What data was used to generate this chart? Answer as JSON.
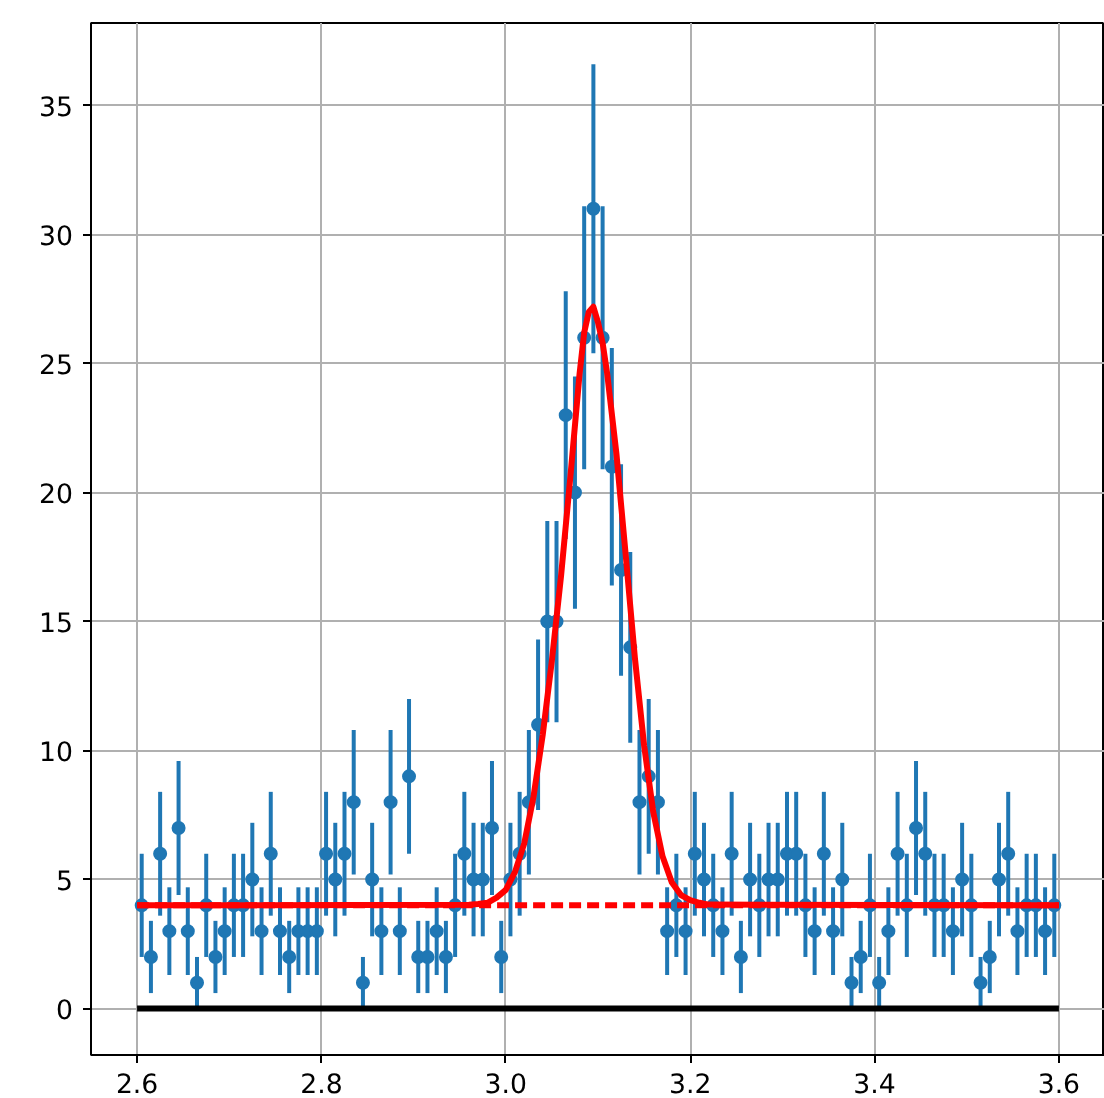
{
  "chart_data": {
    "type": "scatter",
    "xlim": [
      2.55,
      3.65
    ],
    "ylim": [
      -1.8,
      38.2
    ],
    "xticks": [
      {
        "value": 2.6,
        "label": "2.6"
      },
      {
        "value": 2.8,
        "label": "2.8"
      },
      {
        "value": 3.0,
        "label": "3.0"
      },
      {
        "value": 3.2,
        "label": "3.2"
      },
      {
        "value": 3.4,
        "label": "3.4"
      },
      {
        "value": 3.6,
        "label": "3.6"
      }
    ],
    "yticks": [
      0,
      5,
      10,
      15,
      20,
      25,
      30,
      35
    ],
    "grid": true,
    "series": [
      {
        "color": "#1f77b4",
        "marker": "circle",
        "x": [
          2.605,
          2.615,
          2.625,
          2.635,
          2.645,
          2.655,
          2.665,
          2.675,
          2.685,
          2.695,
          2.705,
          2.715,
          2.725,
          2.735,
          2.745,
          2.755,
          2.765,
          2.775,
          2.785,
          2.795,
          2.805,
          2.815,
          2.825,
          2.835,
          2.845,
          2.855,
          2.865,
          2.875,
          2.885,
          2.895,
          2.905,
          2.915,
          2.925,
          2.935,
          2.945,
          2.955,
          2.965,
          2.975,
          2.985,
          2.995,
          3.005,
          3.015,
          3.025,
          3.035,
          3.045,
          3.055,
          3.065,
          3.075,
          3.085,
          3.095,
          3.105,
          3.115,
          3.125,
          3.135,
          3.145,
          3.155,
          3.165,
          3.175,
          3.185,
          3.195,
          3.205,
          3.215,
          3.225,
          3.235,
          3.245,
          3.255,
          3.265,
          3.275,
          3.285,
          3.295,
          3.305,
          3.315,
          3.325,
          3.335,
          3.345,
          3.355,
          3.365,
          3.375,
          3.385,
          3.395,
          3.405,
          3.415,
          3.425,
          3.435,
          3.445,
          3.455,
          3.465,
          3.475,
          3.485,
          3.495,
          3.505,
          3.515,
          3.525,
          3.535,
          3.545,
          3.555,
          3.565,
          3.575,
          3.585,
          3.595
        ],
        "values": [
          4,
          2,
          6,
          3,
          7,
          3,
          1,
          4,
          2,
          3,
          4,
          4,
          5,
          3,
          6,
          3,
          2,
          3,
          3,
          3,
          6,
          5,
          6,
          8,
          1,
          5,
          3,
          8,
          3,
          9,
          2,
          2,
          3,
          2,
          4,
          6,
          5,
          5,
          7,
          2,
          5,
          6,
          8,
          11,
          15,
          15,
          23,
          20,
          26,
          31,
          26,
          21,
          17,
          14,
          8,
          9,
          8,
          3,
          4,
          3,
          6,
          5,
          4,
          3,
          6,
          2,
          5,
          4,
          5,
          5,
          6,
          6,
          4,
          3,
          6,
          3,
          5,
          1,
          2,
          4,
          1,
          3,
          6,
          4,
          7,
          6,
          4,
          4,
          3,
          5,
          4,
          1,
          2,
          5,
          6,
          3,
          4,
          4,
          3,
          4
        ],
        "errors": [
          2,
          1.4,
          2.4,
          1.7,
          2.6,
          1.7,
          1,
          2,
          1.4,
          1.7,
          2,
          2,
          2.2,
          1.7,
          2.4,
          1.7,
          1.4,
          1.7,
          1.7,
          1.7,
          2.4,
          2.2,
          2.4,
          2.8,
          1,
          2.2,
          1.7,
          2.8,
          1.7,
          3,
          1.4,
          1.4,
          1.7,
          1.4,
          2,
          2.4,
          2.2,
          2.2,
          2.6,
          1.4,
          2.2,
          2.4,
          2.8,
          3.3,
          3.9,
          3.9,
          4.8,
          4.5,
          5.1,
          5.6,
          5.1,
          4.6,
          4.1,
          3.7,
          2.8,
          3,
          2.8,
          1.7,
          2,
          1.7,
          2.4,
          2.2,
          2,
          1.7,
          2.4,
          1.4,
          2.2,
          2,
          2.2,
          2.2,
          2.4,
          2.4,
          2,
          1.7,
          2.4,
          1.7,
          2.2,
          1,
          1.4,
          2,
          1,
          1.7,
          2.4,
          2,
          2.6,
          2.4,
          2,
          2,
          1.7,
          2.2,
          2,
          1,
          1.4,
          2.2,
          2.4,
          1.7,
          2,
          2,
          1.7,
          2
        ]
      },
      {
        "type": "line",
        "color": "#000000",
        "line_style": "solid",
        "x": [
          2.6,
          3.6
        ],
        "values": [
          0,
          0
        ]
      },
      {
        "type": "line",
        "color": "#ff0000",
        "line_style": "dashed",
        "x": [
          2.6,
          3.6
        ],
        "values": [
          4,
          4
        ]
      },
      {
        "type": "line",
        "color": "#ff0000",
        "line_style": "solid",
        "x": [
          2.6,
          2.96,
          2.97,
          2.98,
          2.99,
          3.0,
          3.01,
          3.02,
          3.03,
          3.04,
          3.05,
          3.06,
          3.07,
          3.08,
          3.085,
          3.09,
          3.095,
          3.1,
          3.105,
          3.11,
          3.12,
          3.13,
          3.14,
          3.15,
          3.16,
          3.17,
          3.18,
          3.19,
          3.2,
          3.21,
          3.22,
          3.6
        ],
        "values": [
          4,
          4.02,
          4.05,
          4.1,
          4.3,
          4.6,
          5.3,
          6.4,
          8.2,
          10.6,
          13.5,
          16.8,
          20.6,
          24.6,
          26.2,
          27.0,
          27.2,
          26.6,
          25.8,
          24.6,
          21.5,
          17.6,
          13.6,
          10.2,
          7.6,
          5.9,
          4.9,
          4.4,
          4.2,
          4.1,
          4.03,
          4
        ]
      }
    ]
  }
}
